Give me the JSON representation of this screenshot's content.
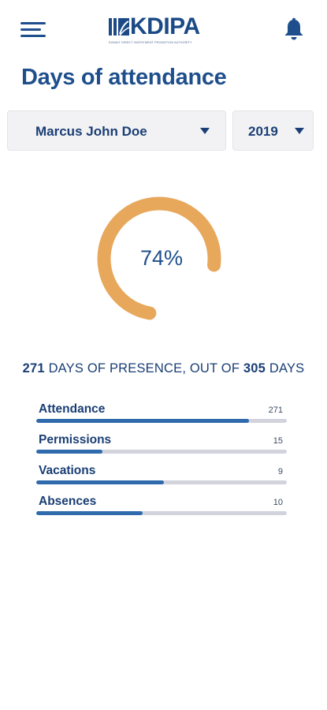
{
  "header": {
    "logo_text": "KDIPA",
    "logo_subtitle": "KUWAIT DIRECT INVESTMENT PROMOTION AUTHORITY",
    "menu_icon": "hamburger-menu-icon",
    "notification_icon": "bell-icon"
  },
  "page": {
    "title": "Days of attendance"
  },
  "filters": {
    "employee": "Marcus John Doe",
    "year": "2019"
  },
  "gauge": {
    "percent": 74,
    "label": "74%",
    "color": "#e7a85c"
  },
  "summary": {
    "present": "271",
    "text_middle": " DAYS OF PRESENCE, OUT OF ",
    "total": "305",
    "text_end": " DAYS"
  },
  "stats": [
    {
      "label": "Attendance",
      "value": "271",
      "fill": 0.85
    },
    {
      "label": "Permissions",
      "value": "15",
      "fill": 0.265
    },
    {
      "label": "Vacations",
      "value": "9",
      "fill": 0.51
    },
    {
      "label": "Absences",
      "value": "10",
      "fill": 0.425
    }
  ],
  "colors": {
    "primary": "#1e4f8c",
    "bar_fill": "#2e6aac",
    "bar_track": "#d2d3dc",
    "gauge": "#e7a85c"
  }
}
